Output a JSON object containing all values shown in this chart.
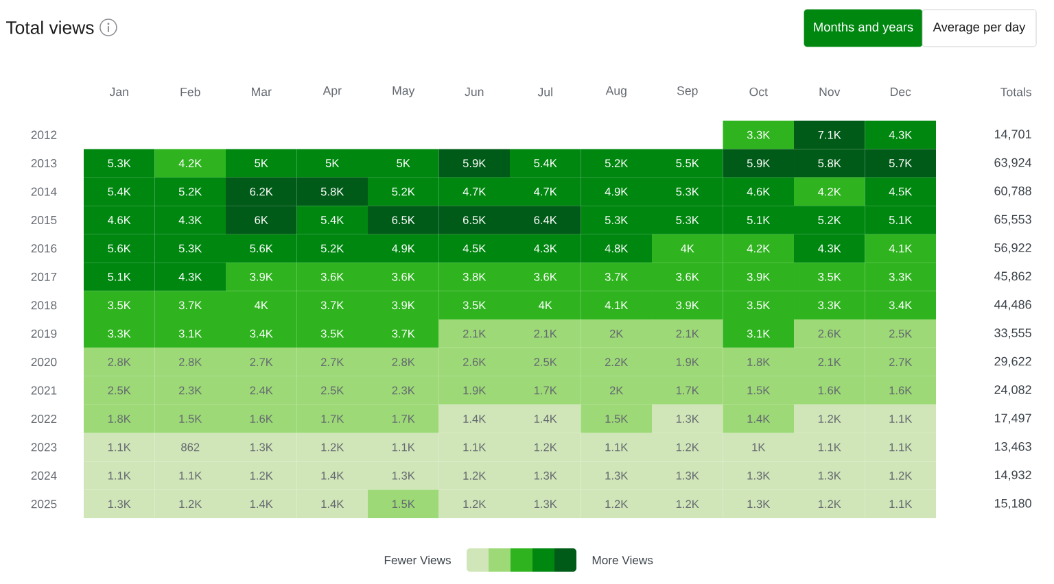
{
  "chart_data": {
    "type": "heatmap",
    "title": "Total views",
    "categories": [
      "Jan",
      "Feb",
      "Mar",
      "Apr",
      "May",
      "Jun",
      "Jul",
      "Aug",
      "Sep",
      "Oct",
      "Nov",
      "Dec"
    ],
    "y_categories": [
      "2012",
      "2013",
      "2014",
      "2015",
      "2016",
      "2017",
      "2018",
      "2019",
      "2020",
      "2021",
      "2022",
      "2023",
      "2024",
      "2025"
    ],
    "y2_categories": [
      "14,701",
      "63,924",
      "60,788",
      "65,553",
      "56,922",
      "45,862",
      "44,486",
      "33,555",
      "29,622",
      "24,082",
      "17,497",
      "13,463",
      "14,932",
      "15,180"
    ],
    "cells": [
      [
        null,
        null,
        null,
        null,
        null,
        null,
        null,
        null,
        null,
        3300,
        7100,
        4300
      ],
      [
        5300,
        4200,
        5000,
        5000,
        5000,
        5900,
        5400,
        5200,
        5500,
        5900,
        5800,
        5700
      ],
      [
        5400,
        5200,
        6200,
        5800,
        5200,
        4700,
        4700,
        4900,
        5300,
        4600,
        4200,
        4500
      ],
      [
        4600,
        4300,
        6000,
        5400,
        6500,
        6500,
        6400,
        5300,
        5300,
        5100,
        5200,
        5100
      ],
      [
        5600,
        5300,
        5600,
        5200,
        4900,
        4500,
        4300,
        4800,
        4000,
        4200,
        4300,
        4100
      ],
      [
        5100,
        4300,
        3900,
        3600,
        3600,
        3800,
        3600,
        3700,
        3600,
        3900,
        3500,
        3300
      ],
      [
        3500,
        3700,
        4000,
        3700,
        3900,
        3500,
        4000,
        4100,
        3900,
        3500,
        3300,
        3400
      ],
      [
        3300,
        3100,
        3400,
        3500,
        3700,
        2100,
        2100,
        2000,
        2100,
        3100,
        2600,
        2500
      ],
      [
        2800,
        2800,
        2700,
        2700,
        2800,
        2600,
        2500,
        2200,
        1900,
        1800,
        2100,
        2700
      ],
      [
        2500,
        2300,
        2400,
        2500,
        2300,
        1900,
        1700,
        2000,
        1700,
        1500,
        1600,
        1600
      ],
      [
        1800,
        1500,
        1600,
        1700,
        1700,
        1400,
        1400,
        1500,
        1300,
        1400,
        1200,
        1100
      ],
      [
        1100,
        862,
        1300,
        1200,
        1100,
        1100,
        1200,
        1100,
        1200,
        1000,
        1100,
        1100
      ],
      [
        1100,
        1100,
        1200,
        1400,
        1300,
        1200,
        1300,
        1300,
        1300,
        1300,
        1300,
        1200
      ],
      [
        1300,
        1200,
        1400,
        1400,
        1500,
        1200,
        1300,
        1200,
        1200,
        1300,
        1200,
        1100
      ]
    ],
    "cell_labels": [
      [
        null,
        null,
        null,
        null,
        null,
        null,
        null,
        null,
        null,
        "3.3K",
        "7.1K",
        "4.3K"
      ],
      [
        "5.3K",
        "4.2K",
        "5K",
        "5K",
        "5K",
        "5.9K",
        "5.4K",
        "5.2K",
        "5.5K",
        "5.9K",
        "5.8K",
        "5.7K"
      ],
      [
        "5.4K",
        "5.2K",
        "6.2K",
        "5.8K",
        "5.2K",
        "4.7K",
        "4.7K",
        "4.9K",
        "5.3K",
        "4.6K",
        "4.2K",
        "4.5K"
      ],
      [
        "4.6K",
        "4.3K",
        "6K",
        "5.4K",
        "6.5K",
        "6.5K",
        "6.4K",
        "5.3K",
        "5.3K",
        "5.1K",
        "5.2K",
        "5.1K"
      ],
      [
        "5.6K",
        "5.3K",
        "5.6K",
        "5.2K",
        "4.9K",
        "4.5K",
        "4.3K",
        "4.8K",
        "4K",
        "4.2K",
        "4.3K",
        "4.1K"
      ],
      [
        "5.1K",
        "4.3K",
        "3.9K",
        "3.6K",
        "3.6K",
        "3.8K",
        "3.6K",
        "3.7K",
        "3.6K",
        "3.9K",
        "3.5K",
        "3.3K"
      ],
      [
        "3.5K",
        "3.7K",
        "4K",
        "3.7K",
        "3.9K",
        "3.5K",
        "4K",
        "4.1K",
        "3.9K",
        "3.5K",
        "3.3K",
        "3.4K"
      ],
      [
        "3.3K",
        "3.1K",
        "3.4K",
        "3.5K",
        "3.7K",
        "2.1K",
        "2.1K",
        "2K",
        "2.1K",
        "3.1K",
        "2.6K",
        "2.5K"
      ],
      [
        "2.8K",
        "2.8K",
        "2.7K",
        "2.7K",
        "2.8K",
        "2.6K",
        "2.5K",
        "2.2K",
        "1.9K",
        "1.8K",
        "2.1K",
        "2.7K"
      ],
      [
        "2.5K",
        "2.3K",
        "2.4K",
        "2.5K",
        "2.3K",
        "1.9K",
        "1.7K",
        "2K",
        "1.7K",
        "1.5K",
        "1.6K",
        "1.6K"
      ],
      [
        "1.8K",
        "1.5K",
        "1.6K",
        "1.7K",
        "1.7K",
        "1.4K",
        "1.4K",
        "1.5K",
        "1.3K",
        "1.4K",
        "1.2K",
        "1.1K"
      ],
      [
        "1.1K",
        "862",
        "1.3K",
        "1.2K",
        "1.1K",
        "1.1K",
        "1.2K",
        "1.1K",
        "1.2K",
        "1K",
        "1.1K",
        "1.1K"
      ],
      [
        "1.1K",
        "1.1K",
        "1.2K",
        "1.4K",
        "1.3K",
        "1.2K",
        "1.3K",
        "1.3K",
        "1.3K",
        "1.3K",
        "1.3K",
        "1.2K"
      ],
      [
        "1.3K",
        "1.2K",
        "1.4K",
        "1.4K",
        "1.5K",
        "1.2K",
        "1.3K",
        "1.2K",
        "1.2K",
        "1.3K",
        "1.2K",
        "1.1K"
      ]
    ],
    "colors": [
      [
        null,
        null,
        null,
        null,
        null,
        null,
        null,
        null,
        null,
        "#2fb41f",
        "#005b18",
        "#008710"
      ],
      [
        "#008710",
        "#2fb41f",
        "#008710",
        "#008710",
        "#008710",
        "#005b18",
        "#008710",
        "#008710",
        "#008710",
        "#005b18",
        "#005b18",
        "#005b18"
      ],
      [
        "#008710",
        "#008710",
        "#005b18",
        "#005b18",
        "#008710",
        "#008710",
        "#008710",
        "#008710",
        "#008710",
        "#008710",
        "#2fb41f",
        "#008710"
      ],
      [
        "#008710",
        "#008710",
        "#005b18",
        "#008710",
        "#005b18",
        "#005b18",
        "#005b18",
        "#008710",
        "#008710",
        "#008710",
        "#008710",
        "#008710"
      ],
      [
        "#008710",
        "#008710",
        "#008710",
        "#008710",
        "#008710",
        "#008710",
        "#008710",
        "#008710",
        "#2fb41f",
        "#2fb41f",
        "#008710",
        "#2fb41f"
      ],
      [
        "#008710",
        "#008710",
        "#2fb41f",
        "#2fb41f",
        "#2fb41f",
        "#2fb41f",
        "#2fb41f",
        "#2fb41f",
        "#2fb41f",
        "#2fb41f",
        "#2fb41f",
        "#2fb41f"
      ],
      [
        "#2fb41f",
        "#2fb41f",
        "#2fb41f",
        "#2fb41f",
        "#2fb41f",
        "#2fb41f",
        "#2fb41f",
        "#2fb41f",
        "#2fb41f",
        "#2fb41f",
        "#2fb41f",
        "#2fb41f"
      ],
      [
        "#2fb41f",
        "#2fb41f",
        "#2fb41f",
        "#2fb41f",
        "#2fb41f",
        "#9dd977",
        "#9dd977",
        "#9dd977",
        "#9dd977",
        "#2fb41f",
        "#9dd977",
        "#9dd977"
      ],
      [
        "#9dd977",
        "#9dd977",
        "#9dd977",
        "#9dd977",
        "#9dd977",
        "#9dd977",
        "#9dd977",
        "#9dd977",
        "#9dd977",
        "#9dd977",
        "#9dd977",
        "#9dd977"
      ],
      [
        "#9dd977",
        "#9dd977",
        "#9dd977",
        "#9dd977",
        "#9dd977",
        "#9dd977",
        "#9dd977",
        "#9dd977",
        "#9dd977",
        "#9dd977",
        "#9dd977",
        "#9dd977"
      ],
      [
        "#9dd977",
        "#9dd977",
        "#9dd977",
        "#9dd977",
        "#9dd977",
        "#d0e6b8",
        "#d0e6b8",
        "#9dd977",
        "#d0e6b8",
        "#9dd977",
        "#d0e6b8",
        "#d0e6b8"
      ],
      [
        "#d0e6b8",
        "#d0e6b8",
        "#d0e6b8",
        "#d0e6b8",
        "#d0e6b8",
        "#d0e6b8",
        "#d0e6b8",
        "#d0e6b8",
        "#d0e6b8",
        "#d0e6b8",
        "#d0e6b8",
        "#d0e6b8"
      ],
      [
        "#d0e6b8",
        "#d0e6b8",
        "#d0e6b8",
        "#d0e6b8",
        "#d0e6b8",
        "#d0e6b8",
        "#d0e6b8",
        "#d0e6b8",
        "#d0e6b8",
        "#d0e6b8",
        "#d0e6b8",
        "#d0e6b8"
      ],
      [
        "#d0e6b8",
        "#d0e6b8",
        "#d0e6b8",
        "#d0e6b8",
        "#9dd977",
        "#d0e6b8",
        "#d0e6b8",
        "#d0e6b8",
        "#d0e6b8",
        "#d0e6b8",
        "#d0e6b8",
        "#d0e6b8"
      ]
    ],
    "annotations": [
      "Months and years",
      "Average per day",
      "Totals",
      "Fewer Views",
      "More Views"
    ]
  }
}
